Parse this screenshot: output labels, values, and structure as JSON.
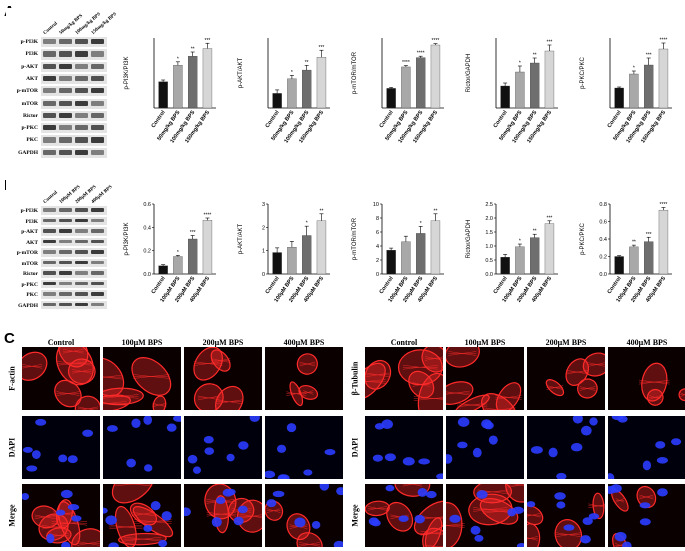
{
  "panels": {
    "A": "A",
    "B": "B",
    "C": "C"
  },
  "western_A": {
    "lanes": [
      "Control",
      "50mg/kg BPS",
      "100mg/kg BPS",
      "150mg/kg BPS"
    ],
    "proteins": [
      "p-PI3K",
      "PI3K",
      "p-AKT",
      "AKT",
      "p-mTOR",
      "mTOR",
      "Rictor",
      "p-PKC",
      "PKC",
      "GAPDH"
    ]
  },
  "western_B": {
    "lanes": [
      "Control",
      "100μM BPS",
      "200μM BPS",
      "400μM BPS"
    ],
    "proteins": [
      "p-PI3K",
      "PI3K",
      "p-AKT",
      "AKT",
      "p-mTOR",
      "mTOR",
      "Rictor",
      "p-PKC",
      "PKC",
      "GAPDH"
    ]
  },
  "chart_data": [
    {
      "type": "bar",
      "panel": "A",
      "ylabel": "p-PI3K/PI3K",
      "categories": [
        "Control",
        "50mg/kg BPS",
        "100mg/kg BPS",
        "150mg/kg BPS"
      ],
      "values": [
        0.75,
        1.22,
        1.48,
        1.7
      ],
      "errors": [
        0.05,
        0.1,
        0.12,
        0.15
      ],
      "ylim": [
        0,
        2.0
      ],
      "yticks": [],
      "sig": [
        "",
        "*",
        "**",
        "***"
      ],
      "colors": [
        "#111111",
        "#a8a8a8",
        "#6e6e6e",
        "#d6d6d6"
      ]
    },
    {
      "type": "bar",
      "panel": "A",
      "ylabel": "p-AKT/AKT",
      "categories": [
        "Control",
        "50mg/kg BPS",
        "100mg/kg BPS",
        "150mg/kg BPS"
      ],
      "values": [
        0.25,
        0.5,
        0.65,
        0.87
      ],
      "errors": [
        0.06,
        0.06,
        0.08,
        0.12
      ],
      "ylim": [
        0,
        1.2
      ],
      "yticks": [],
      "sig": [
        "",
        "*",
        "**",
        "***"
      ],
      "colors": [
        "#111111",
        "#a8a8a8",
        "#6e6e6e",
        "#d6d6d6"
      ]
    },
    {
      "type": "bar",
      "panel": "A",
      "ylabel": "p-mTOR/mTOR",
      "categories": [
        "Control",
        "50mg/kg BPS",
        "100mg/kg BPS",
        "150mg/kg BPS"
      ],
      "values": [
        0.42,
        0.88,
        1.08,
        1.35
      ],
      "errors": [
        0.02,
        0.03,
        0.03,
        0.03
      ],
      "ylim": [
        0,
        1.5
      ],
      "yticks": [],
      "sig": [
        "",
        "****",
        "****",
        "****"
      ],
      "colors": [
        "#111111",
        "#a8a8a8",
        "#6e6e6e",
        "#d6d6d6"
      ]
    },
    {
      "type": "bar",
      "panel": "A",
      "ylabel": "Rictor/GAPDH",
      "categories": [
        "Control",
        "50mg/kg BPS",
        "100mg/kg BPS",
        "150mg/kg BPS"
      ],
      "values": [
        0.22,
        0.36,
        0.45,
        0.57
      ],
      "errors": [
        0.03,
        0.06,
        0.05,
        0.06
      ],
      "ylim": [
        0,
        0.7
      ],
      "yticks": [],
      "sig": [
        "",
        "*",
        "**",
        "***"
      ],
      "colors": [
        "#111111",
        "#a8a8a8",
        "#6e6e6e",
        "#d6d6d6"
      ]
    },
    {
      "type": "bar",
      "panel": "A",
      "ylabel": "p-PKC/PKC",
      "categories": [
        "Control",
        "50mg/kg BPS",
        "100mg/kg BPS",
        "150mg/kg BPS"
      ],
      "values": [
        0.2,
        0.34,
        0.43,
        0.59
      ],
      "errors": [
        0.01,
        0.03,
        0.07,
        0.06
      ],
      "ylim": [
        0,
        0.7
      ],
      "yticks": [],
      "sig": [
        "",
        "*",
        "***",
        "****"
      ],
      "colors": [
        "#111111",
        "#a8a8a8",
        "#6e6e6e",
        "#d6d6d6"
      ]
    },
    {
      "type": "bar",
      "panel": "B",
      "ylabel": "p-PI3K/PI3K",
      "categories": [
        "Control",
        "100μM BPS",
        "200μM BPS",
        "400μM BPS"
      ],
      "values": [
        0.07,
        0.15,
        0.3,
        0.46
      ],
      "errors": [
        0.01,
        0.01,
        0.03,
        0.02
      ],
      "ylim": [
        0,
        0.6
      ],
      "yticks": [
        "0.0",
        "0.2",
        "0.4",
        "0.6"
      ],
      "sig": [
        "",
        "*",
        "***",
        "****"
      ],
      "colors": [
        "#111111",
        "#a8a8a8",
        "#6e6e6e",
        "#d6d6d6"
      ]
    },
    {
      "type": "bar",
      "panel": "B",
      "ylabel": "p-AKT/AKT",
      "categories": [
        "Control",
        "100μM BPS",
        "200μM BPS",
        "400μM BPS"
      ],
      "values": [
        0.92,
        1.15,
        1.65,
        2.28
      ],
      "errors": [
        0.2,
        0.25,
        0.4,
        0.3
      ],
      "ylim": [
        0,
        3
      ],
      "yticks": [
        "0",
        "1",
        "2",
        "3"
      ],
      "sig": [
        "",
        "",
        "*",
        "**"
      ],
      "colors": [
        "#111111",
        "#a8a8a8",
        "#6e6e6e",
        "#d6d6d6"
      ]
    },
    {
      "type": "bar",
      "panel": "B",
      "ylabel": "p-mTOR/mTOR",
      "categories": [
        "Control",
        "100μM BPS",
        "200μM BPS",
        "400μM BPS"
      ],
      "values": [
        3.4,
        4.6,
        5.8,
        7.6
      ],
      "errors": [
        0.3,
        0.8,
        1.0,
        1.0
      ],
      "ylim": [
        0,
        10
      ],
      "yticks": [
        "0",
        "2",
        "4",
        "6",
        "8",
        "10"
      ],
      "sig": [
        "",
        "",
        "*",
        "**"
      ],
      "colors": [
        "#111111",
        "#a8a8a8",
        "#6e6e6e",
        "#d6d6d6"
      ]
    },
    {
      "type": "bar",
      "panel": "B",
      "ylabel": "Rictor/GAPDH",
      "categories": [
        "Control",
        "100μM BPS",
        "200μM BPS",
        "400μM BPS"
      ],
      "values": [
        0.6,
        0.97,
        1.3,
        1.8
      ],
      "errors": [
        0.1,
        0.1,
        0.12,
        0.1
      ],
      "ylim": [
        0,
        2.5
      ],
      "yticks": [
        "0.0",
        "0.5",
        "1.0",
        "1.5",
        "2.0",
        "2.5"
      ],
      "sig": [
        "",
        "*",
        "**",
        "***"
      ],
      "colors": [
        "#111111",
        "#a8a8a8",
        "#6e6e6e",
        "#d6d6d6"
      ]
    },
    {
      "type": "bar",
      "panel": "B",
      "ylabel": "p-PKC/PKC",
      "categories": [
        "Control",
        "100μM BPS",
        "200μM BPS",
        "400μM BPS"
      ],
      "values": [
        0.2,
        0.31,
        0.37,
        0.73
      ],
      "errors": [
        0.01,
        0.02,
        0.05,
        0.03
      ],
      "ylim": [
        0,
        0.8
      ],
      "yticks": [
        "0.0",
        "0.2",
        "0.4",
        "0.6",
        "0.8"
      ],
      "sig": [
        "",
        "**",
        "***",
        "****"
      ],
      "colors": [
        "#111111",
        "#a8a8a8",
        "#6e6e6e",
        "#d6d6d6"
      ]
    }
  ],
  "microscopy": {
    "columns": [
      "Control",
      "100μM BPS",
      "200μM BPS",
      "400μM BPS"
    ],
    "left_rows": [
      "F-actin",
      "DAPI",
      "Merge"
    ],
    "right_rows": [
      "β-Tubulin",
      "DAPI",
      "Merge"
    ],
    "stain_colors": {
      "actin": "#ff2a2a",
      "dapi": "#2a3cff"
    }
  }
}
